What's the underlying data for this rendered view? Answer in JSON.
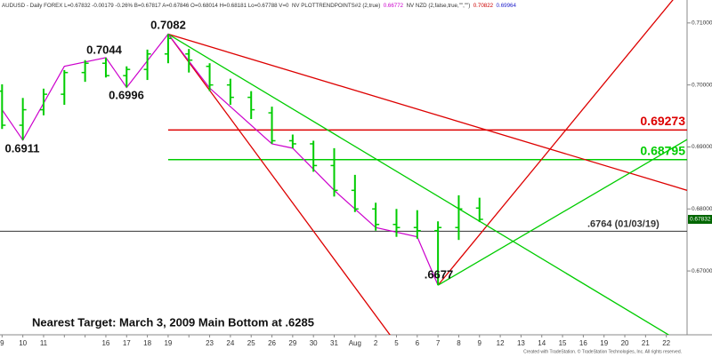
{
  "chart_data": {
    "type": "ohlc",
    "header": [
      {
        "text": "AUDUSD - Daily  FOREX  L=0.67832  -0.00179  -0.26%  B=0.67817  A=0.67846  O=0.68014  H=0.68181  Lo=0.67788  V=0",
        "color": "#333333"
      },
      {
        "text": "NV PLOTTRENDPOINTS#2 (2,true)",
        "color": "#333333"
      },
      {
        "text": "0.66772",
        "color": "#cc00cc"
      },
      {
        "text": "NV NZD (2,false,true,\"\",\"\")",
        "color": "#333333"
      },
      {
        "text": "0.70822",
        "color": "#cc0000"
      },
      {
        "text": "0.69964",
        "color": "#2222cc"
      }
    ],
    "categories": [
      "9",
      "10",
      "11",
      null,
      null,
      "16",
      "17",
      "18",
      "19",
      null,
      "23",
      "24",
      "25",
      "26",
      "29",
      "30",
      "31",
      "Aug",
      "2",
      "5",
      "6",
      "7",
      "8",
      "9",
      "12",
      "13",
      "14",
      "15",
      "16",
      "19",
      "20",
      "21",
      "22"
    ],
    "xlim": [
      -0.1,
      33.0
    ],
    "ylim": [
      0.6597,
      0.7137
    ],
    "yticks": [
      {
        "value": 0.71,
        "label": "0.71000"
      },
      {
        "value": 0.7,
        "label": "0.70000"
      },
      {
        "value": 0.69,
        "label": "0.69000"
      },
      {
        "value": 0.68,
        "label": "0.68000"
      },
      {
        "value": 0.67,
        "label": "0.67000"
      }
    ],
    "bar_color": "#00cc00",
    "open": [
      0.699,
      0.6935,
      0.696,
      0.6985,
      0.702,
      0.7035,
      0.7015,
      0.7025,
      0.705,
      0.705,
      0.703,
      0.7,
      0.698,
      0.6955,
      0.691,
      0.6905,
      0.687,
      0.683,
      0.68,
      0.6775,
      0.677,
      0.6765,
      0.677,
      0.68014,
      null,
      null,
      null,
      null,
      null,
      null,
      null,
      null,
      null
    ],
    "high": [
      0.7001,
      0.6979,
      0.6994,
      0.7024,
      0.704,
      0.7044,
      0.703,
      0.7057,
      0.7082,
      0.7058,
      0.7035,
      0.701,
      0.699,
      0.6965,
      0.692,
      0.691,
      0.6898,
      0.6855,
      0.681,
      0.68,
      0.6798,
      0.678,
      0.6822,
      0.68181,
      null,
      null,
      null,
      null,
      null,
      null,
      null,
      null,
      null
    ],
    "low": [
      0.6929,
      0.6911,
      0.6951,
      0.6968,
      0.7005,
      0.7012,
      0.6996,
      0.7008,
      0.7035,
      0.702,
      0.699,
      0.6968,
      0.6945,
      0.6905,
      0.6898,
      0.686,
      0.682,
      0.6795,
      0.6765,
      0.6755,
      0.6752,
      0.6677,
      0.675,
      0.67788,
      null,
      null,
      null,
      null,
      null,
      null,
      null,
      null,
      null
    ],
    "close": [
      0.6935,
      0.696,
      0.6985,
      0.702,
      0.7035,
      0.7015,
      0.7025,
      0.705,
      0.7075,
      0.704,
      0.7,
      0.698,
      0.696,
      0.691,
      0.6905,
      0.687,
      0.683,
      0.68,
      0.6775,
      0.677,
      0.6765,
      0.677,
      0.68,
      0.67832,
      null,
      null,
      null,
      null,
      null,
      null,
      null,
      null,
      null
    ],
    "swing": {
      "color": "#cc00cc",
      "x": [
        0,
        1,
        3,
        5,
        6,
        8,
        10,
        13,
        14,
        16,
        17,
        18,
        20,
        21
      ],
      "values": [
        0.696,
        0.6911,
        0.703,
        0.7044,
        0.6996,
        0.7082,
        0.6995,
        0.6905,
        0.6898,
        0.683,
        0.68,
        0.677,
        0.6755,
        0.6677
      ]
    },
    "trendlines": [
      {
        "color": "#dd0000",
        "x": [
          8,
          33
        ],
        "values": [
          0.7082,
          0.683
        ]
      },
      {
        "color": "#dd0000",
        "x": [
          8,
          19.5
        ],
        "values": [
          0.7082,
          0.656
        ]
      },
      {
        "color": "#dd0000",
        "x": [
          21,
          33
        ],
        "values": [
          0.6677,
          0.7165
        ]
      },
      {
        "color": "#00cc00",
        "x": [
          8,
          33
        ],
        "values": [
          0.7082,
          0.6579
        ]
      },
      {
        "color": "#00cc00",
        "x": [
          21,
          33
        ],
        "values": [
          0.6677,
          0.6912
        ]
      }
    ],
    "levels": [
      {
        "value": 0.69273,
        "label": "0.69273",
        "color": "#dd0000",
        "from": 8
      },
      {
        "value": 0.68795,
        "label": "0.68795",
        "color": "#00cc00",
        "from": 8
      },
      {
        "value": 0.6764,
        "label": ".6764 (01/03/19)",
        "color": "#333333",
        "from": -0.1
      }
    ],
    "last_price": {
      "value": 0.67832,
      "label": "0.67832",
      "color": "#006600"
    },
    "annotations": [
      "0.7082",
      "0.7044",
      "0.6996",
      "0.6911",
      ".6677",
      "Nearest Target:  March 3, 2009 Main Bottom at .6285"
    ],
    "footer": "Created with TradeStation. © TradeStation Technologies, Inc. All rights reserved."
  }
}
